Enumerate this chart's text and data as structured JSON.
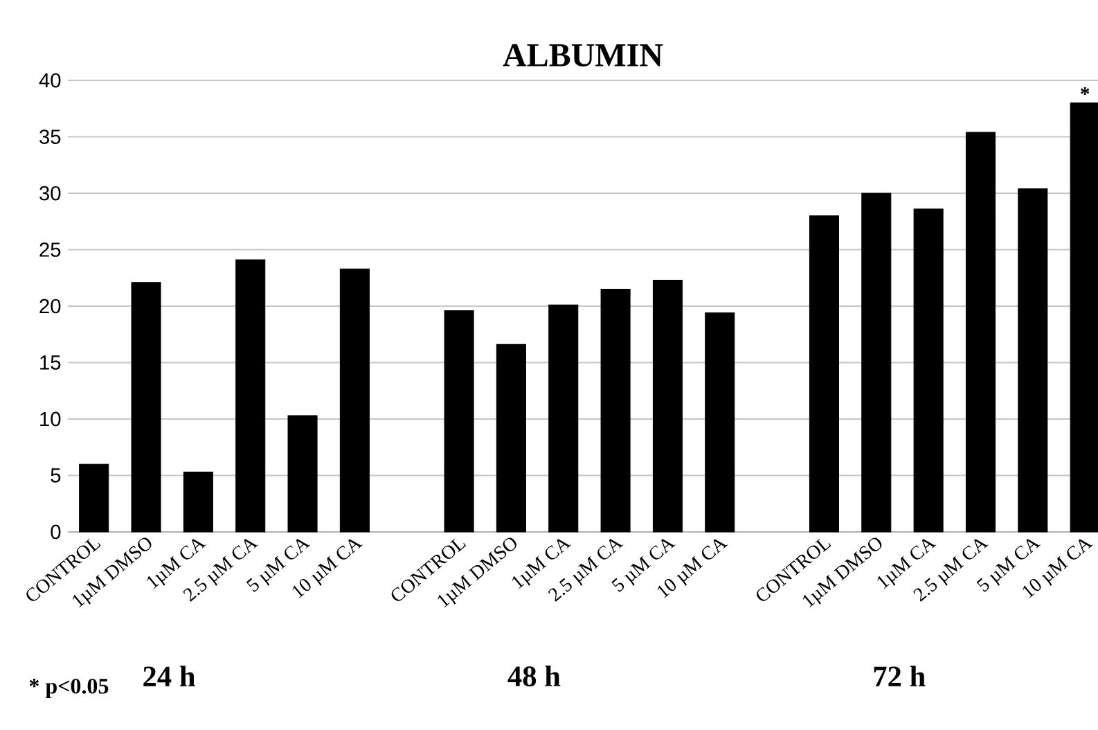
{
  "chart_data": {
    "type": "bar",
    "title": "ALBUMIN",
    "categories": [
      "CONTROL",
      "1µM DMSO",
      "1µM CA",
      "2.5 µM CA",
      "5 µM CA",
      "10 µM CA",
      null,
      "CONTROL",
      "1µM DMSO",
      "1µM CA",
      "2.5 µM CA",
      "5 µM CA",
      "10 µM CA",
      null,
      "CONTROL",
      "1µM DMSO",
      "1µM CA",
      "2.5 µM CA",
      "5 µM CA",
      "10 µM CA"
    ],
    "values": [
      6.0,
      22.1,
      5.3,
      24.1,
      10.3,
      23.3,
      null,
      19.6,
      16.6,
      20.1,
      21.5,
      22.3,
      19.4,
      null,
      28.0,
      30.0,
      28.6,
      35.4,
      30.4,
      38.0
    ],
    "color": "#000000",
    "ylim": [
      0,
      40
    ],
    "yticks": [
      0,
      5,
      10,
      15,
      20,
      25,
      30,
      35,
      40
    ],
    "grid": "y",
    "annotations": [
      "* p<0.05",
      "24 h",
      "48 h",
      "72 h",
      "*"
    ]
  }
}
